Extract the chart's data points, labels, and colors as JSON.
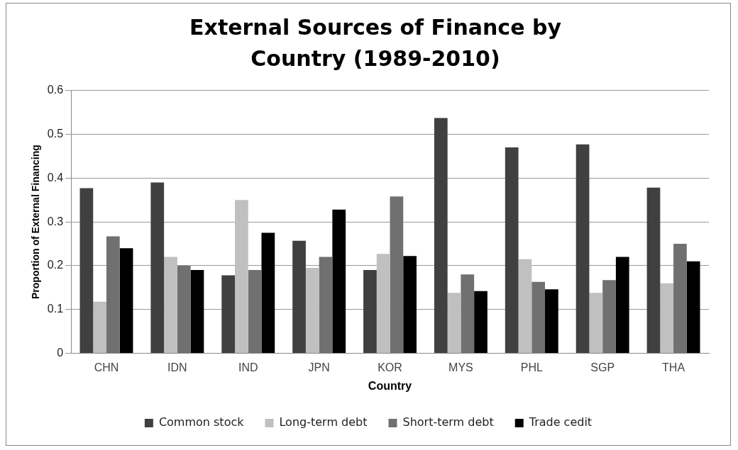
{
  "chart_data": {
    "type": "bar",
    "title": "External Sources of Finance by Country (1989-2010)",
    "xlabel": "Country",
    "ylabel": "Proportion of External Financing",
    "categories": [
      "CHN",
      "IDN",
      "IND",
      "JPN",
      "KOR",
      "MYS",
      "PHL",
      "SGP",
      "THA"
    ],
    "series": [
      {
        "name": "Common stock",
        "color": "#404040",
        "values": [
          0.377,
          0.39,
          0.178,
          0.257,
          0.19,
          0.537,
          0.47,
          0.477,
          0.378
        ]
      },
      {
        "name": "Long-term debt",
        "color": "#c0c0c0",
        "values": [
          0.118,
          0.22,
          0.35,
          0.195,
          0.227,
          0.138,
          0.215,
          0.138,
          0.16
        ]
      },
      {
        "name": "Short-term debt",
        "color": "#707070",
        "values": [
          0.267,
          0.2,
          0.19,
          0.22,
          0.358,
          0.18,
          0.163,
          0.167,
          0.25
        ]
      },
      {
        "name": "Trade cedit",
        "color": "#000000",
        "values": [
          0.24,
          0.19,
          0.275,
          0.328,
          0.222,
          0.142,
          0.146,
          0.22,
          0.21
        ]
      }
    ],
    "ylim": [
      0,
      0.6
    ],
    "yticks": [
      0,
      0.1,
      0.2,
      0.3,
      0.4,
      0.5,
      0.6
    ],
    "grid": "y",
    "legend": "bottom"
  }
}
